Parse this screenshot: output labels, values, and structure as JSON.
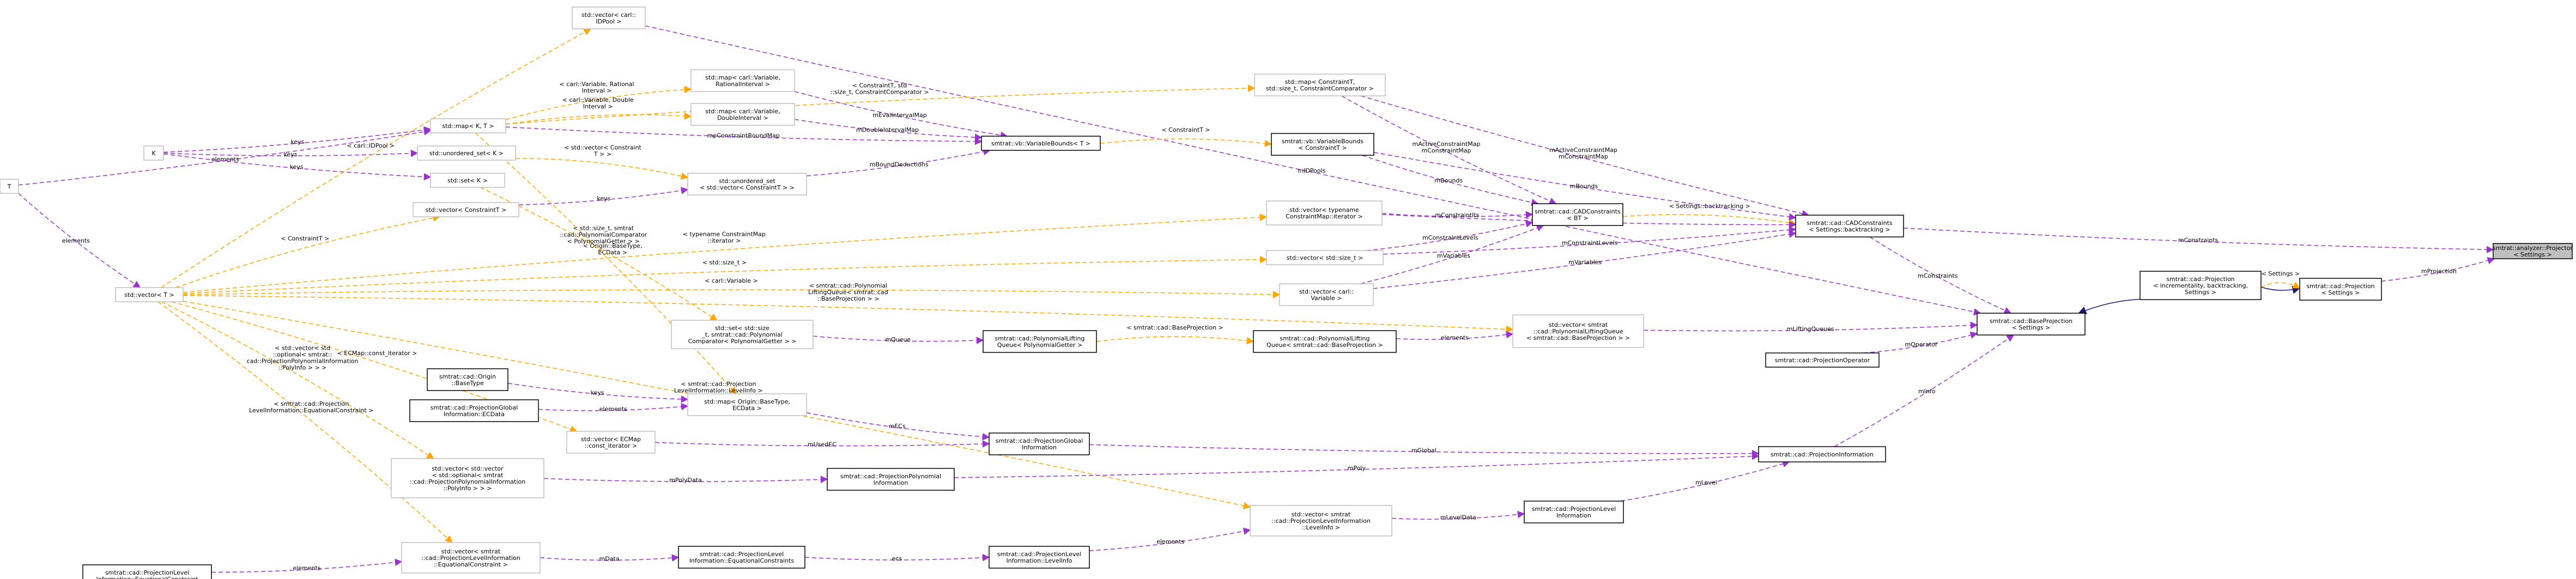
{
  "colors": {
    "node_border": "#000000",
    "template_node_border": "#bfbfbf",
    "highlight_fill": "#bfbfbf",
    "member_edge": "#9a32cd",
    "template_edge": "#ffa500",
    "inherit_edge": "#191970"
  },
  "nodes": [
    {
      "id": "projector",
      "lines": [
        "smtrat::analyzer::Projector",
        "< Settings >"
      ],
      "style": "highlight"
    },
    {
      "id": "projection",
      "lines": [
        "smtrat::cad::Projection",
        "< Settings >"
      ],
      "style": "normal"
    },
    {
      "id": "projection_inc",
      "lines": [
        "smtrat::cad::Projection",
        "< incrementality, backtracking,",
        "Settings >"
      ],
      "style": "normal"
    },
    {
      "id": "baseprojection",
      "lines": [
        "smtrat::cad::BaseProjection",
        "< Settings >"
      ],
      "style": "normal"
    },
    {
      "id": "cadconstraints",
      "lines": [
        "smtrat::cad::CADConstraints",
        "< Settings::backtracking >"
      ],
      "style": "normal"
    },
    {
      "id": "cadconstraints_bt",
      "lines": [
        "smtrat::cad::CADConstraints",
        "< BT >"
      ],
      "style": "normal"
    },
    {
      "id": "projectionoperator",
      "lines": [
        "smtrat::cad::ProjectionOperator"
      ],
      "style": "normal"
    },
    {
      "id": "projectioninformation",
      "lines": [
        "smtrat::cad::ProjectionInformation"
      ],
      "style": "normal"
    },
    {
      "id": "projectionlevelinfo",
      "lines": [
        "smtrat::cad::ProjectionLevel",
        "Information"
      ],
      "style": "normal"
    },
    {
      "id": "projectionlevelinfo_levelinfo",
      "lines": [
        "smtrat::cad::ProjectionLevel",
        "Information::LevelInfo"
      ],
      "style": "normal"
    },
    {
      "id": "projectionlevelinfo_eqc",
      "lines": [
        "smtrat::cad::ProjectionLevel",
        "Information::EquationalConstraints"
      ],
      "style": "normal"
    },
    {
      "id": "projectionlevelinfo_eqc2",
      "lines": [
        "smtrat::cad::ProjectionLevel",
        "Information::EquationalConstraint"
      ],
      "style": "normal"
    },
    {
      "id": "projectionpolynomialinfo",
      "lines": [
        "smtrat::cad::ProjectionPolynomial",
        "Information"
      ],
      "style": "normal"
    },
    {
      "id": "projectionglobalinfo",
      "lines": [
        "smtrat::cad::ProjectionGlobal",
        "Information"
      ],
      "style": "normal"
    },
    {
      "id": "projectionglobalinfo_ecdata",
      "lines": [
        "smtrat::cad::ProjectionGlobal",
        "Information::ECData"
      ],
      "style": "normal"
    },
    {
      "id": "origin_basetype",
      "lines": [
        "smtrat::cad::Origin",
        "::BaseType"
      ],
      "style": "normal"
    },
    {
      "id": "polyliftingqueue",
      "lines": [
        "smtrat::cad::PolynomialLifting",
        "Queue< PolynomialGetter >"
      ],
      "style": "normal"
    },
    {
      "id": "polyliftingqueue_bp",
      "lines": [
        "smtrat::cad::PolynomialLifting",
        "Queue< smtrat::cad::BaseProjection >"
      ],
      "style": "normal"
    },
    {
      "id": "variablebounds",
      "lines": [
        "smtrat::vb::VariableBounds< T >"
      ],
      "style": "normal"
    },
    {
      "id": "variablebounds_c",
      "lines": [
        "smtrat::vb::VariableBounds",
        "< ConstraintT >"
      ],
      "style": "normal"
    },
    {
      "id": "vec_idpool",
      "lines": [
        "std::vector< carl::",
        "IDPool >"
      ],
      "style": "template"
    },
    {
      "id": "map_constraint_size",
      "lines": [
        "std::map< ConstraintT,",
        "std::size_t, ConstraintComparator >"
      ],
      "style": "template"
    },
    {
      "id": "map_rational",
      "lines": [
        "std::map< carl::Variable,",
        "RationalInterval >"
      ],
      "style": "template"
    },
    {
      "id": "map_double",
      "lines": [
        "std::map< carl::Variable,",
        "DoubleInterval >"
      ],
      "style": "template"
    },
    {
      "id": "map_k_t",
      "lines": [
        "std::map< K, T >"
      ],
      "style": "template"
    },
    {
      "id": "T",
      "lines": [
        "T"
      ],
      "style": "template"
    },
    {
      "id": "K",
      "lines": [
        "K"
      ],
      "style": "template"
    },
    {
      "id": "unordered_set_k",
      "lines": [
        "std::unordered_set< K >"
      ],
      "style": "template"
    },
    {
      "id": "set_k",
      "lines": [
        "std::set< K >"
      ],
      "style": "template"
    },
    {
      "id": "vec_constraint",
      "lines": [
        "std::vector< ConstraintT >"
      ],
      "style": "template"
    },
    {
      "id": "unordered_set_constraint",
      "lines": [
        "std::unordered_set",
        "< std::vector< ConstraintT > >"
      ],
      "style": "template"
    },
    {
      "id": "vec_iterator",
      "lines": [
        "std::vector< typename",
        "ConstraintMap::iterator >"
      ],
      "style": "template"
    },
    {
      "id": "vec_size",
      "lines": [
        "std::vector< std::size_t >"
      ],
      "style": "template"
    },
    {
      "id": "vec_variable",
      "lines": [
        "std::vector< carl::",
        "Variable >"
      ],
      "style": "template"
    },
    {
      "id": "vec_t",
      "lines": [
        "std::vector< T >"
      ],
      "style": "template"
    },
    {
      "id": "set_size_polygetter",
      "lines": [
        "std::set< std::size",
        "_t, smtrat::cad::Polynomial",
        "Comparator< PolynomialGetter > >"
      ],
      "style": "template"
    },
    {
      "id": "vec_liftingqueue",
      "lines": [
        "std::vector< smtrat",
        "::cad::PolynomialLiftingQueue",
        "< smtrat::cad::BaseProjection > >"
      ],
      "style": "template"
    },
    {
      "id": "map_origin_ecdata",
      "lines": [
        "std::map< Origin::BaseType,",
        "ECData >"
      ],
      "style": "template"
    },
    {
      "id": "vec_ecmap_iter",
      "lines": [
        "std::vector< ECMap",
        "::const_iterator >"
      ],
      "style": "template"
    },
    {
      "id": "vec_vec_optional",
      "lines": [
        "std::vector< std::vector",
        "< std::optional< smtrat",
        "::cad::ProjectionPolynomialInformation",
        "::PolyInfo > > >"
      ],
      "style": "template"
    },
    {
      "id": "vec_levelinfo",
      "lines": [
        "std::vector< smtrat",
        "::cad::ProjectionLevelInformation",
        "::LevelInfo >"
      ],
      "style": "template"
    },
    {
      "id": "vec_eqconstraint",
      "lines": [
        "std::vector< smtrat",
        "::cad::ProjectionLevelInformation",
        "::EquationalConstraint >"
      ],
      "style": "template"
    }
  ],
  "edges": [
    {
      "from": "projection_inc",
      "to": "projection",
      "kind": "inherit",
      "labels": []
    },
    {
      "from": "projection",
      "to": "projector",
      "kind": "member",
      "labels": [
        "mProjection"
      ]
    },
    {
      "from": "projection_inc",
      "to": "baseprojection",
      "kind": "inherit",
      "labels": []
    },
    {
      "from": "projection_inc",
      "to": "projection",
      "kind": "template",
      "labels": [
        "< Settings >"
      ]
    },
    {
      "from": "cadconstraints",
      "to": "projector",
      "kind": "member",
      "labels": [
        "mConstraints"
      ]
    },
    {
      "from": "cadconstraints",
      "to": "baseprojection",
      "kind": "member",
      "labels": [
        "mConstraints"
      ]
    },
    {
      "from": "cadconstraints_bt",
      "to": "cadconstraints",
      "kind": "template",
      "labels": [
        "< Settings::backtracking >"
      ]
    },
    {
      "from": "projectionoperator",
      "to": "baseprojection",
      "kind": "member",
      "labels": [
        "mOperator"
      ]
    },
    {
      "from": "projectioninformation",
      "to": "baseprojection",
      "kind": "member",
      "labels": [
        "mInfo"
      ]
    },
    {
      "from": "vec_liftingqueue",
      "to": "baseprojection",
      "kind": "member",
      "labels": [
        "mLiftingQueues"
      ]
    },
    {
      "from": "vec_idpool",
      "to": "baseprojection",
      "kind": "member",
      "labels": [
        "mIDPools"
      ]
    },
    {
      "from": "map_constraint_size",
      "to": "cadconstraints",
      "kind": "member",
      "labels": [
        "mActiveConstraintMap",
        "mConstraintMap"
      ]
    },
    {
      "from": "variablebounds_c",
      "to": "cadconstraints",
      "kind": "member",
      "labels": [
        "mBounds"
      ]
    },
    {
      "from": "vec_iterator",
      "to": "cadconstraints",
      "kind": "member",
      "labels": [
        "mConstraintIts"
      ]
    },
    {
      "from": "vec_size",
      "to": "cadconstraints",
      "kind": "member",
      "labels": [
        "mConstraintLevels"
      ]
    },
    {
      "from": "vec_variable",
      "to": "cadconstraints",
      "kind": "member",
      "labels": [
        "mVariables"
      ]
    },
    {
      "from": "map_constraint_size",
      "to": "cadconstraints_bt",
      "kind": "member",
      "labels": [
        "mActiveConstraintMap",
        "mConstraintMap"
      ]
    },
    {
      "from": "variablebounds_c",
      "to": "cadconstraints_bt",
      "kind": "member",
      "labels": [
        "mBounds"
      ]
    },
    {
      "from": "vec_iterator",
      "to": "cadconstraints_bt",
      "kind": "member",
      "labels": [
        "mConstraintIts"
      ]
    },
    {
      "from": "vec_size",
      "to": "cadconstraints_bt",
      "kind": "member",
      "labels": [
        "mConstraintLevels"
      ]
    },
    {
      "from": "vec_variable",
      "to": "cadconstraints_bt",
      "kind": "member",
      "labels": [
        "mVariables"
      ]
    },
    {
      "from": "variablebounds",
      "to": "variablebounds_c",
      "kind": "template",
      "labels": [
        "< ConstraintT >"
      ]
    },
    {
      "from": "map_rational",
      "to": "variablebounds",
      "kind": "member",
      "labels": [
        "mEvalIntervalMap"
      ]
    },
    {
      "from": "map_double",
      "to": "variablebounds",
      "kind": "member",
      "labels": [
        "mDoubleIntervalMap"
      ]
    },
    {
      "from": "map_k_t",
      "to": "variablebounds",
      "kind": "member",
      "labels": [
        "mpConstraintBoundMap"
      ]
    },
    {
      "from": "unordered_set_constraint",
      "to": "variablebounds",
      "kind": "member",
      "labels": [
        "mBoundDeductions"
      ]
    },
    {
      "from": "map_k_t",
      "to": "map_rational",
      "kind": "template",
      "labels": [
        "< carl::Variable, Rational",
        "Interval >"
      ]
    },
    {
      "from": "map_k_t",
      "to": "map_double",
      "kind": "template",
      "labels": [
        "< carl::Variable, Double",
        "Interval >"
      ]
    },
    {
      "from": "map_k_t",
      "to": "map_constraint_size",
      "kind": "template",
      "labels": [
        "< ConstraintT, std",
        "::size_t, ConstraintComparator >"
      ]
    },
    {
      "from": "map_k_t",
      "to": "map_origin_ecdata",
      "kind": "template",
      "labels": [
        "< Origin::BaseType,",
        "ECData >"
      ]
    },
    {
      "from": "T",
      "to": "map_k_t",
      "kind": "member",
      "labels": [
        "elements"
      ]
    },
    {
      "from": "K",
      "to": "map_k_t",
      "kind": "member",
      "labels": [
        "keys"
      ]
    },
    {
      "from": "K",
      "to": "unordered_set_k",
      "kind": "member",
      "labels": [
        "keys"
      ]
    },
    {
      "from": "K",
      "to": "set_k",
      "kind": "member",
      "labels": [
        "keys"
      ]
    },
    {
      "from": "T",
      "to": "vec_t",
      "kind": "member",
      "labels": [
        "elements"
      ]
    },
    {
      "from": "unordered_set_k",
      "to": "unordered_set_constraint",
      "kind": "template",
      "labels": [
        "< std::vector< Constraint",
        "T > >"
      ]
    },
    {
      "from": "vec_constraint",
      "to": "unordered_set_constraint",
      "kind": "member",
      "labels": [
        "keys"
      ]
    },
    {
      "from": "set_k",
      "to": "set_size_polygetter",
      "kind": "template",
      "labels": [
        "< std::size_t, smtrat",
        "::cad::PolynomialComparator",
        "< PolynomialGetter > >"
      ]
    },
    {
      "from": "vec_t",
      "to": "vec_constraint",
      "kind": "template",
      "labels": [
        "< ConstraintT >"
      ]
    },
    {
      "from": "vec_t",
      "to": "vec_idpool",
      "kind": "template",
      "labels": [
        "< carl::IDPool >"
      ]
    },
    {
      "from": "vec_t",
      "to": "vec_iterator",
      "kind": "template",
      "labels": [
        "< typename ConstraintMap",
        "::iterator >"
      ]
    },
    {
      "from": "vec_t",
      "to": "vec_size",
      "kind": "template",
      "labels": [
        "< std::size_t >"
      ]
    },
    {
      "from": "vec_t",
      "to": "vec_variable",
      "kind": "template",
      "labels": [
        "< carl::Variable >"
      ]
    },
    {
      "from": "vec_t",
      "to": "vec_liftingqueue",
      "kind": "template",
      "labels": [
        "< smtrat::cad::Polynomial",
        "LiftingQueue< smtrat::cad",
        "::BaseProjection > >"
      ]
    },
    {
      "from": "vec_t",
      "to": "vec_ecmap_iter",
      "kind": "template",
      "labels": [
        "< ECMap::const_iterator >"
      ]
    },
    {
      "from": "vec_t",
      "to": "vec_vec_optional",
      "kind": "template",
      "labels": [
        "< std::vector< std",
        "::optional< smtrat::",
        "cad::ProjectionPolynomialInformation",
        "::PolyInfo > > >"
      ]
    },
    {
      "from": "vec_t",
      "to": "vec_levelinfo",
      "kind": "template",
      "labels": [
        "< smtrat::cad::Projection",
        "LevelInformation::LevelInfo >"
      ]
    },
    {
      "from": "vec_t",
      "to": "vec_eqconstraint",
      "kind": "template",
      "labels": [
        "< smtrat::cad::Projection",
        "LevelInformation::EquationalConstraint >"
      ]
    },
    {
      "from": "set_size_polygetter",
      "to": "polyliftingqueue",
      "kind": "member",
      "labels": [
        "mQueue"
      ]
    },
    {
      "from": "polyliftingqueue",
      "to": "polyliftingqueue_bp",
      "kind": "template",
      "labels": [
        "< smtrat::cad::BaseProjection >"
      ]
    },
    {
      "from": "polyliftingqueue_bp",
      "to": "vec_liftingqueue",
      "kind": "member",
      "labels": [
        "elements"
      ]
    },
    {
      "from": "origin_basetype",
      "to": "map_origin_ecdata",
      "kind": "member",
      "labels": [
        "keys"
      ]
    },
    {
      "from": "projectionglobalinfo_ecdata",
      "to": "map_origin_ecdata",
      "kind": "member",
      "labels": [
        "elements"
      ]
    },
    {
      "from": "map_origin_ecdata",
      "to": "projectionglobalinfo",
      "kind": "member",
      "labels": [
        "mECs"
      ]
    },
    {
      "from": "vec_ecmap_iter",
      "to": "projectionglobalinfo",
      "kind": "member",
      "labels": [
        "mUsedEC"
      ]
    },
    {
      "from": "projectionglobalinfo",
      "to": "projectioninformation",
      "kind": "member",
      "labels": [
        "mGlobal"
      ]
    },
    {
      "from": "vec_vec_optional",
      "to": "projectionpolynomialinfo",
      "kind": "member",
      "labels": [
        "mPolyData"
      ]
    },
    {
      "from": "projectionpolynomialinfo",
      "to": "projectioninformation",
      "kind": "member",
      "labels": [
        "mPoly"
      ]
    },
    {
      "from": "projectionlevelinfo",
      "to": "projectioninformation",
      "kind": "member",
      "labels": [
        "mLevel"
      ]
    },
    {
      "from": "vec_levelinfo",
      "to": "projectionlevelinfo",
      "kind": "member",
      "labels": [
        "mLevelData"
      ]
    },
    {
      "from": "projectionlevelinfo_levelinfo",
      "to": "vec_levelinfo",
      "kind": "member",
      "labels": [
        "elements"
      ]
    },
    {
      "from": "projectionlevelinfo_eqc",
      "to": "projectionlevelinfo_levelinfo",
      "kind": "member",
      "labels": [
        "ecs"
      ]
    },
    {
      "from": "vec_eqconstraint",
      "to": "projectionlevelinfo_eqc",
      "kind": "member",
      "labels": [
        "mData"
      ]
    },
    {
      "from": "projectionlevelinfo_eqc2",
      "to": "vec_eqconstraint",
      "kind": "member",
      "labels": [
        "elements"
      ]
    }
  ]
}
